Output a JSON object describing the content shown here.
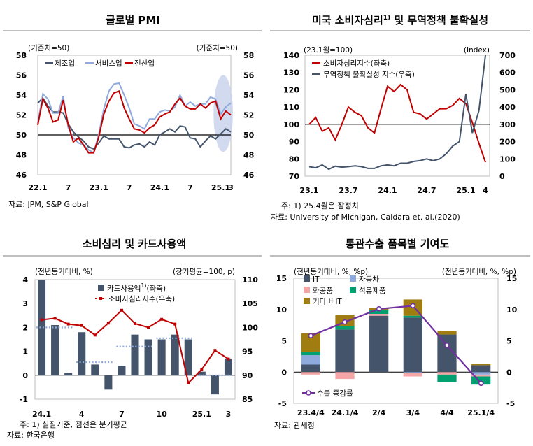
{
  "panels": {
    "pmi": {
      "title": "글로벌 PMI",
      "left_unit": "(기준치=50)",
      "right_unit": "(기준치=50)",
      "source": "자료: JPM, S&P Global"
    },
    "us": {
      "title": "미국 소비자심리",
      "title_sup": "1)",
      "title_tail": "및 무역정책 불확실성",
      "left_unit": "(23.1월=100)",
      "right_unit": "(Index)",
      "note": "주: 1) 25.4월은 잠정치",
      "source": "자료: University of Michigan, Caldara et. al.(2020)"
    },
    "card": {
      "title": "소비심리 및 카드사용액",
      "left_unit": "(전년동기대비, %)",
      "right_unit": "(장기평균=100, p)",
      "note": "주: 1) 실질기준, 점선은 분기평균",
      "source": "자료: 한국은행"
    },
    "customs": {
      "title": "통관수출 품목별 기여도",
      "left_unit": "(전년동기대비, %, %p)",
      "right_unit": "(전년동기대비, %, %p)",
      "source": "자료: 관세청"
    }
  },
  "chart_data": [
    {
      "type": "line",
      "id": "pmi",
      "title": "글로벌 PMI",
      "ylim": [
        46,
        58
      ],
      "y_ticks": [
        46,
        48,
        50,
        52,
        54,
        56,
        58
      ],
      "x_range": [
        0,
        38
      ],
      "x_ticks": [
        {
          "x": 0,
          "label": "22.1"
        },
        {
          "x": 6,
          "label": "7"
        },
        {
          "x": 12,
          "label": "23.1"
        },
        {
          "x": 18,
          "label": "7"
        },
        {
          "x": 24,
          "label": "24.1"
        },
        {
          "x": 30,
          "label": "7"
        },
        {
          "x": 36,
          "label": "25.1"
        },
        {
          "x": 38,
          "label": "3"
        }
      ],
      "reference_line": 50,
      "series": [
        {
          "name": "제조업",
          "color": "#44546a",
          "values": [
            53.2,
            53.7,
            52.9,
            52.3,
            52.3,
            52.2,
            51.1,
            50.3,
            49.8,
            49.4,
            48.8,
            48.6,
            49.2,
            49.9,
            49.6,
            49.6,
            49.6,
            48.8,
            48.7,
            49.0,
            49.1,
            48.8,
            49.3,
            49.0,
            50.0,
            50.3,
            50.6,
            50.3,
            50.9,
            50.8,
            49.7,
            49.6,
            48.8,
            49.4,
            49.9,
            49.6,
            50.1,
            50.6,
            50.3
          ]
        },
        {
          "name": "서비스업",
          "color": "#8faadc",
          "values": [
            51.2,
            54.1,
            53.6,
            52.2,
            52.2,
            53.9,
            50.7,
            49.7,
            49.2,
            49.0,
            48.5,
            48.2,
            50.1,
            52.6,
            54.4,
            55.1,
            55.2,
            54.0,
            52.7,
            51.1,
            50.9,
            50.6,
            51.6,
            51.6,
            52.3,
            52.5,
            52.4,
            52.8,
            54.0,
            52.9,
            53.3,
            52.9,
            53.1,
            53.1,
            53.8,
            53.6,
            52.1,
            52.8,
            53.2
          ]
        },
        {
          "name": "전산업",
          "color": "#c00000",
          "values": [
            51.0,
            53.6,
            52.7,
            51.3,
            51.5,
            53.5,
            51.0,
            49.3,
            49.7,
            49.0,
            48.2,
            48.2,
            49.8,
            52.1,
            53.4,
            54.2,
            54.4,
            52.7,
            51.6,
            50.6,
            50.5,
            50.2,
            50.7,
            51.0,
            51.8,
            52.1,
            52.3,
            53.1,
            53.7,
            52.9,
            52.6,
            52.6,
            53.1,
            52.7,
            53.2,
            53.4,
            51.6,
            52.4,
            52.0
          ]
        }
      ],
      "highlight": {
        "x_from": 34.6,
        "x_to": 38.4,
        "y_from": 48.3,
        "y_to": 56.0
      }
    },
    {
      "type": "line",
      "id": "us",
      "title": "미국 소비자심리 및 무역정책 불확실성",
      "ylim_left": [
        70,
        140
      ],
      "y_ticks_left": [
        70,
        80,
        90,
        100,
        110,
        120,
        130,
        140
      ],
      "ylim_right": [
        0,
        700
      ],
      "y_ticks_right": [
        0,
        100,
        200,
        300,
        400,
        500,
        600,
        700
      ],
      "x_range": [
        0,
        27
      ],
      "x_ticks": [
        {
          "x": 0,
          "label": "23.1"
        },
        {
          "x": 6,
          "label": "23.7"
        },
        {
          "x": 12,
          "label": "24.1"
        },
        {
          "x": 18,
          "label": "24.7"
        },
        {
          "x": 24,
          "label": "25.1"
        },
        {
          "x": 27,
          "label": "4"
        }
      ],
      "series": [
        {
          "name": "소비자심리지수(좌축)",
          "axis": "left",
          "color": "#c00000",
          "values": [
            100,
            104,
            96,
            98,
            91,
            100,
            110,
            107,
            105,
            98,
            95,
            109,
            122,
            119,
            123,
            120,
            107,
            106,
            103,
            106,
            109,
            109,
            111,
            115,
            112,
            101,
            89,
            78
          ]
        },
        {
          "name": "무역정책 불확실성 지수(우축)",
          "axis": "right",
          "color": "#44546a",
          "values": [
            55,
            48,
            65,
            40,
            58,
            52,
            55,
            60,
            55,
            45,
            45,
            60,
            65,
            60,
            75,
            75,
            85,
            90,
            100,
            90,
            100,
            130,
            175,
            200,
            475,
            250,
            380,
            700
          ]
        }
      ]
    },
    {
      "type": "bar",
      "id": "card",
      "title": "소비심리 및 카드사용액",
      "ylim_left": [
        -1,
        4
      ],
      "y_ticks_left": [
        -1,
        0,
        1,
        2,
        3,
        4
      ],
      "ylim_right": [
        85,
        110
      ],
      "y_ticks_right": [
        85,
        90,
        95,
        100,
        105,
        110
      ],
      "x_ticks": [
        {
          "i": 0,
          "label": "24.1"
        },
        {
          "i": 3,
          "label": "4"
        },
        {
          "i": 6,
          "label": "7"
        },
        {
          "i": 9,
          "label": "10"
        },
        {
          "i": 12,
          "label": "25.1"
        },
        {
          "i": 14,
          "label": "3"
        }
      ],
      "series": [
        {
          "name": "카드사용액",
          "name_sup": "1)",
          "name_tail": "(좌축)",
          "axis": "left",
          "type": "bar",
          "color": "#44546a",
          "values": [
            4.0,
            2.1,
            0.1,
            1.8,
            0.45,
            -0.6,
            0.4,
            1.7,
            1.5,
            1.5,
            1.7,
            1.5,
            0.15,
            -0.8,
            0.7
          ]
        },
        {
          "name": "소비자심리지수(우축)",
          "axis": "right",
          "type": "line",
          "color": "#c00000",
          "values": [
            101.6,
            101.9,
            100.7,
            100.4,
            98.4,
            100.9,
            103.6,
            100.8,
            100.0,
            101.7,
            100.7,
            88.4,
            91.2,
            95.2,
            93.4
          ]
        }
      ],
      "quarter_averages": [
        {
          "from": 0,
          "to": 2,
          "value": 2.0
        },
        {
          "from": 3,
          "to": 5,
          "value": 0.55
        },
        {
          "from": 6,
          "to": 8,
          "value": 1.2
        },
        {
          "from": 9,
          "to": 11,
          "value": 1.55
        },
        {
          "from": 12,
          "to": 14,
          "value": 0.0
        }
      ]
    },
    {
      "type": "bar",
      "id": "customs",
      "title": "통관수출 품목별 기여도",
      "stacked": true,
      "ylim": [
        -5,
        15
      ],
      "y_ticks": [
        -5,
        0,
        5,
        10,
        15
      ],
      "categories": [
        "23.4/4",
        "24.1/4",
        "2/4",
        "3/4",
        "4/4",
        "25.1/4"
      ],
      "series": [
        {
          "name": "IT",
          "color": "#44546a",
          "values": [
            1.2,
            6.8,
            9.0,
            8.7,
            6.0,
            1.1
          ]
        },
        {
          "name": "자동차",
          "color": "#8faadc",
          "values": [
            1.5,
            0.0,
            0.0,
            -0.2,
            0.0,
            -0.4
          ]
        },
        {
          "name": "화공품",
          "color": "#f4a6a6",
          "values": [
            -0.4,
            -1.1,
            0.3,
            -0.5,
            -0.4,
            -0.3
          ]
        },
        {
          "name": "석유제품",
          "color": "#00a070",
          "values": [
            0.5,
            0.6,
            0.6,
            0.3,
            -1.2,
            -1.3
          ]
        },
        {
          "name": "기타 비IT",
          "color": "#a07d10",
          "values": [
            3.0,
            1.7,
            0.3,
            2.6,
            0.6,
            0.2
          ]
        },
        {
          "name": "수출 증감률",
          "type": "line",
          "color": "#7030a0",
          "values": [
            5.8,
            8.0,
            10.1,
            10.6,
            4.3,
            -1.8
          ]
        }
      ]
    }
  ]
}
